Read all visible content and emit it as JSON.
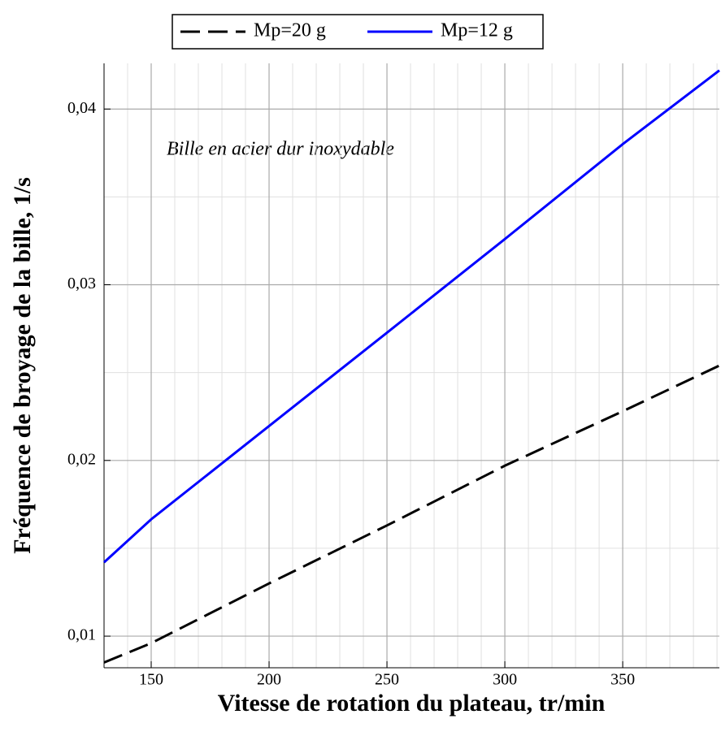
{
  "chart_data": {
    "type": "line",
    "xlabel": "Vitesse de rotation du plateau, tr/min",
    "ylabel": "Fréquence de broyage de la bille, 1/s",
    "annotation": "Bille en acier dur inoxydable",
    "x": [
      130,
      150,
      200,
      250,
      300,
      350,
      391
    ],
    "series": [
      {
        "name": "Mp=20 g",
        "color": "#000000",
        "dash": true,
        "values": [
          0.0085,
          0.0096,
          0.013,
          0.0163,
          0.0197,
          0.0228,
          0.0254
        ]
      },
      {
        "name": "Mp=12 g",
        "color": "#0000ff",
        "dash": false,
        "values": [
          0.0142,
          0.01665,
          0.02196,
          0.02727,
          0.0326,
          0.038,
          0.0422
        ]
      }
    ],
    "xlim": [
      130,
      391
    ],
    "ylim": [
      0.0082,
      0.0426
    ],
    "xticks": [
      150,
      200,
      250,
      300,
      350
    ],
    "yticks": [
      {
        "value": 0.01,
        "label": "0,01"
      },
      {
        "value": 0.02,
        "label": "0,02"
      },
      {
        "value": 0.03,
        "label": "0,03"
      },
      {
        "value": 0.04,
        "label": "0,04"
      }
    ],
    "xminorticks": [
      140,
      160,
      170,
      180,
      190,
      210,
      220,
      230,
      240,
      260,
      270,
      280,
      290,
      310,
      320,
      330,
      340,
      360,
      370,
      380,
      390
    ],
    "yminorticks": [
      0.015,
      0.025,
      0.035
    ],
    "grid": true,
    "legend": "top"
  }
}
